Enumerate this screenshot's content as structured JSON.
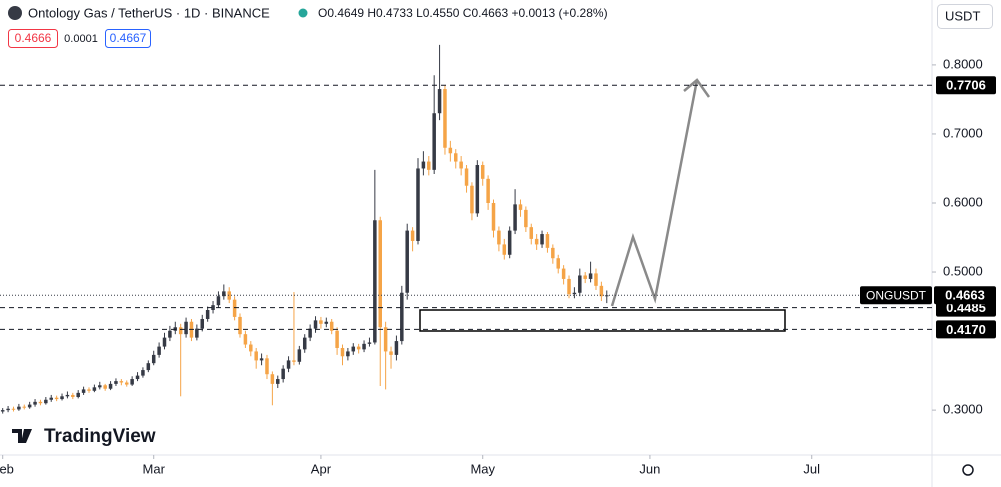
{
  "chart_data": {
    "type": "candlestick",
    "title": "Ontology Gas / TetherUS · 1D · BINANCE",
    "ohlc_header": "O0.4649 H0.4733 L0.4550 C0.4663 +0.0013 (+0.28%)",
    "bid": "0.4666",
    "spread": "0.0001",
    "ask": "0.4667",
    "currency": "USDT",
    "brand": "TradingView",
    "up_color": "#363a45",
    "down_color": "#f5a447",
    "xlim": [
      -0.5,
      172.3
    ],
    "xticks": [
      {
        "value": 0,
        "label": "Feb"
      },
      {
        "value": 28,
        "label": "Mar"
      },
      {
        "value": 59,
        "label": "Apr"
      },
      {
        "value": 89,
        "label": "May"
      },
      {
        "value": 120,
        "label": "Jun"
      },
      {
        "value": 150,
        "label": "Jul"
      }
    ],
    "ylim": [
      0.235,
      0.894
    ],
    "yticks": [
      {
        "value": 0.3,
        "label": "0.3000"
      },
      {
        "value": 0.5,
        "label": "0.5000"
      },
      {
        "value": 0.6,
        "label": "0.6000"
      },
      {
        "value": 0.7,
        "label": "0.7000"
      },
      {
        "value": 0.8,
        "label": "0.8000"
      }
    ],
    "price_lines": [
      0.7706,
      0.4485,
      {
        "value": 0.417,
        "label": "0.4170"
      }
    ],
    "last_price": {
      "name": "ONGUSDT",
      "value": 0.4663
    },
    "x": [
      0,
      1,
      2,
      3,
      4,
      5,
      6,
      7,
      8,
      9,
      10,
      11,
      12,
      13,
      14,
      15,
      16,
      17,
      18,
      19,
      20,
      21,
      22,
      23,
      24,
      25,
      26,
      27,
      28,
      29,
      30,
      31,
      32,
      33,
      34,
      35,
      36,
      37,
      38,
      39,
      40,
      41,
      42,
      43,
      44,
      45,
      46,
      47,
      48,
      49,
      50,
      51,
      52,
      53,
      54,
      55,
      56,
      57,
      58,
      59,
      60,
      61,
      62,
      63,
      64,
      65,
      66,
      67,
      68,
      69,
      70,
      71,
      72,
      73,
      74,
      75,
      76,
      77,
      78,
      79,
      80,
      81,
      82,
      83,
      84,
      85,
      86,
      87,
      88,
      89,
      90,
      91,
      92,
      93,
      94,
      95,
      96,
      97,
      98,
      99,
      100,
      101,
      102,
      103,
      104,
      105,
      106,
      107,
      108,
      109,
      110,
      111,
      112
    ],
    "open": [
      0.298,
      0.3,
      0.302,
      0.301,
      0.305,
      0.304,
      0.308,
      0.312,
      0.31,
      0.315,
      0.318,
      0.316,
      0.32,
      0.322,
      0.319,
      0.325,
      0.33,
      0.328,
      0.333,
      0.336,
      0.331,
      0.338,
      0.342,
      0.34,
      0.337,
      0.345,
      0.35,
      0.358,
      0.368,
      0.38,
      0.392,
      0.405,
      0.415,
      0.42,
      0.41,
      0.428,
      0.405,
      0.418,
      0.432,
      0.445,
      0.452,
      0.465,
      0.472,
      0.46,
      0.435,
      0.41,
      0.395,
      0.385,
      0.372,
      0.375,
      0.352,
      0.338,
      0.345,
      0.36,
      0.372,
      0.37,
      0.388,
      0.405,
      0.418,
      0.43,
      0.425,
      0.428,
      0.415,
      0.39,
      0.378,
      0.385,
      0.392,
      0.388,
      0.396,
      0.398,
      0.575,
      0.42,
      0.385,
      0.38,
      0.4,
      0.47,
      0.56,
      0.545,
      0.65,
      0.66,
      0.648,
      0.73,
      0.765,
      0.68,
      0.672,
      0.66,
      0.65,
      0.625,
      0.585,
      0.655,
      0.635,
      0.6,
      0.56,
      0.54,
      0.525,
      0.56,
      0.598,
      0.59,
      0.565,
      0.548,
      0.54,
      0.555,
      0.535,
      0.52,
      0.505,
      0.49,
      0.468,
      0.47,
      0.495,
      0.49,
      0.498,
      0.48,
      0.4649
    ],
    "high": [
      0.303,
      0.306,
      0.305,
      0.309,
      0.308,
      0.312,
      0.316,
      0.315,
      0.319,
      0.322,
      0.321,
      0.324,
      0.327,
      0.325,
      0.329,
      0.334,
      0.333,
      0.337,
      0.341,
      0.338,
      0.342,
      0.346,
      0.345,
      0.343,
      0.349,
      0.355,
      0.362,
      0.372,
      0.386,
      0.398,
      0.412,
      0.422,
      0.428,
      0.425,
      0.434,
      0.432,
      0.424,
      0.438,
      0.45,
      0.458,
      0.472,
      0.482,
      0.478,
      0.465,
      0.44,
      0.415,
      0.4,
      0.39,
      0.382,
      0.38,
      0.356,
      0.35,
      0.365,
      0.378,
      0.471,
      0.393,
      0.41,
      0.424,
      0.436,
      0.435,
      0.434,
      0.432,
      0.42,
      0.395,
      0.39,
      0.397,
      0.396,
      0.401,
      0.405,
      0.648,
      0.58,
      0.428,
      0.392,
      0.408,
      0.48,
      0.57,
      0.565,
      0.665,
      0.675,
      0.668,
      0.785,
      0.829,
      0.77,
      0.69,
      0.678,
      0.668,
      0.655,
      0.63,
      0.662,
      0.66,
      0.64,
      0.605,
      0.566,
      0.548,
      0.566,
      0.62,
      0.605,
      0.595,
      0.57,
      0.555,
      0.56,
      0.558,
      0.54,
      0.525,
      0.51,
      0.495,
      0.478,
      0.505,
      0.5,
      0.515,
      0.505,
      0.486,
      0.4733
    ],
    "low": [
      0.295,
      0.297,
      0.298,
      0.299,
      0.301,
      0.302,
      0.305,
      0.307,
      0.308,
      0.312,
      0.313,
      0.314,
      0.317,
      0.316,
      0.317,
      0.322,
      0.325,
      0.326,
      0.33,
      0.328,
      0.329,
      0.335,
      0.336,
      0.334,
      0.335,
      0.342,
      0.347,
      0.355,
      0.365,
      0.376,
      0.388,
      0.4,
      0.41,
      0.32,
      0.405,
      0.4,
      0.401,
      0.414,
      0.428,
      0.44,
      0.448,
      0.46,
      0.455,
      0.43,
      0.405,
      0.39,
      0.378,
      0.36,
      0.365,
      0.345,
      0.307,
      0.332,
      0.34,
      0.355,
      0.365,
      0.366,
      0.383,
      0.4,
      0.412,
      0.418,
      0.42,
      0.41,
      0.38,
      0.365,
      0.372,
      0.38,
      0.382,
      0.384,
      0.392,
      0.395,
      0.335,
      0.33,
      0.36,
      0.372,
      0.395,
      0.46,
      0.53,
      0.54,
      0.64,
      0.64,
      0.642,
      0.72,
      0.67,
      0.66,
      0.65,
      0.64,
      0.615,
      0.575,
      0.58,
      0.625,
      0.59,
      0.55,
      0.53,
      0.518,
      0.52,
      0.555,
      0.58,
      0.558,
      0.54,
      0.532,
      0.535,
      0.528,
      0.512,
      0.498,
      0.482,
      0.462,
      0.462,
      0.465,
      0.484,
      0.485,
      0.474,
      0.458,
      0.455
    ],
    "close": [
      0.3,
      0.302,
      0.301,
      0.305,
      0.304,
      0.308,
      0.312,
      0.31,
      0.315,
      0.318,
      0.316,
      0.32,
      0.322,
      0.319,
      0.325,
      0.33,
      0.328,
      0.333,
      0.336,
      0.331,
      0.338,
      0.342,
      0.34,
      0.337,
      0.345,
      0.35,
      0.358,
      0.368,
      0.38,
      0.392,
      0.405,
      0.415,
      0.42,
      0.41,
      0.428,
      0.405,
      0.418,
      0.432,
      0.445,
      0.452,
      0.465,
      0.472,
      0.46,
      0.435,
      0.41,
      0.395,
      0.385,
      0.372,
      0.375,
      0.352,
      0.338,
      0.345,
      0.36,
      0.372,
      0.37,
      0.388,
      0.405,
      0.418,
      0.43,
      0.425,
      0.428,
      0.415,
      0.39,
      0.378,
      0.385,
      0.392,
      0.388,
      0.396,
      0.398,
      0.575,
      0.42,
      0.385,
      0.38,
      0.4,
      0.47,
      0.56,
      0.545,
      0.65,
      0.66,
      0.648,
      0.73,
      0.765,
      0.68,
      0.672,
      0.66,
      0.65,
      0.625,
      0.585,
      0.655,
      0.635,
      0.6,
      0.56,
      0.54,
      0.525,
      0.56,
      0.598,
      0.59,
      0.565,
      0.548,
      0.54,
      0.555,
      0.535,
      0.52,
      0.505,
      0.49,
      0.468,
      0.47,
      0.495,
      0.49,
      0.498,
      0.48,
      0.4649,
      0.4663
    ]
  }
}
